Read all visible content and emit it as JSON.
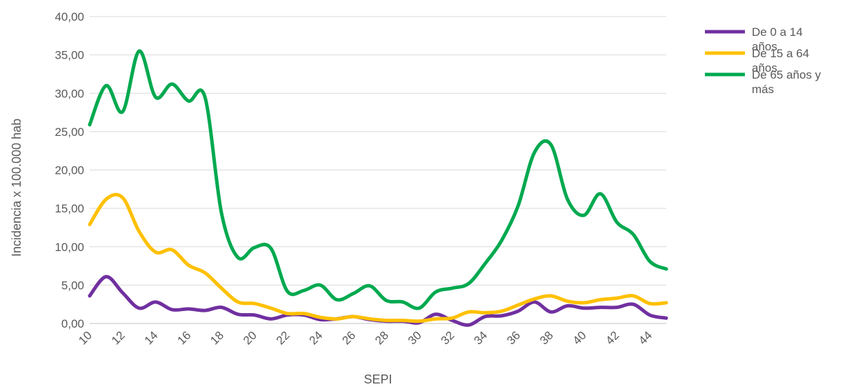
{
  "chart_data": {
    "type": "line",
    "xlabel": "SEPI",
    "ylabel": "Incidencia x 100.000 hab",
    "ylim": [
      0,
      40
    ],
    "yticks": [
      "0,00",
      "5,00",
      "10,00",
      "15,00",
      "20,00",
      "25,00",
      "30,00",
      "35,00",
      "40,00"
    ],
    "xticks": [
      "10",
      "12",
      "14",
      "16",
      "18",
      "20",
      "22",
      "24",
      "26",
      "28",
      "30",
      "32",
      "34",
      "36",
      "38",
      "40",
      "42",
      "44"
    ],
    "x": [
      10,
      11,
      12,
      13,
      14,
      15,
      16,
      17,
      18,
      19,
      20,
      21,
      22,
      23,
      24,
      25,
      26,
      27,
      28,
      29,
      30,
      31,
      32,
      33,
      34,
      35,
      36,
      37,
      38,
      39,
      40,
      41,
      42,
      43,
      44,
      45
    ],
    "grid": true,
    "legend_position": "right",
    "series": [
      {
        "name": "De 0 a 14 años",
        "color": "#7030A0",
        "values": [
          3.6,
          6.1,
          4.0,
          2.0,
          2.8,
          1.8,
          1.9,
          1.7,
          2.1,
          1.2,
          1.1,
          0.6,
          1.1,
          1.1,
          0.5,
          0.6,
          0.9,
          0.5,
          0.3,
          0.3,
          0.1,
          1.2,
          0.4,
          -0.2,
          0.9,
          1.0,
          1.6,
          2.8,
          1.5,
          2.3,
          2.0,
          2.1,
          2.1,
          2.5,
          1.1,
          0.7
        ]
      },
      {
        "name": "De 15 a 64 años",
        "color": "#FFC000",
        "values": [
          12.9,
          16.2,
          16.4,
          12.0,
          9.3,
          9.6,
          7.6,
          6.6,
          4.6,
          2.8,
          2.6,
          2.0,
          1.3,
          1.3,
          0.8,
          0.6,
          0.9,
          0.6,
          0.4,
          0.4,
          0.3,
          0.6,
          0.7,
          1.5,
          1.4,
          1.6,
          2.4,
          3.2,
          3.6,
          2.9,
          2.7,
          3.1,
          3.3,
          3.6,
          2.6,
          2.7
        ]
      },
      {
        "name": "De 65 años y más",
        "color": "#00A94F",
        "values": [
          25.9,
          31.0,
          27.6,
          35.5,
          29.5,
          31.2,
          29.0,
          29.5,
          14.4,
          8.6,
          9.9,
          9.8,
          4.2,
          4.3,
          5.0,
          3.1,
          3.9,
          4.9,
          3.0,
          2.8,
          2.0,
          4.1,
          4.6,
          5.2,
          7.8,
          10.8,
          15.3,
          22.3,
          23.3,
          16.2,
          14.1,
          16.9,
          13.2,
          11.6,
          8.1,
          7.1
        ]
      }
    ]
  }
}
